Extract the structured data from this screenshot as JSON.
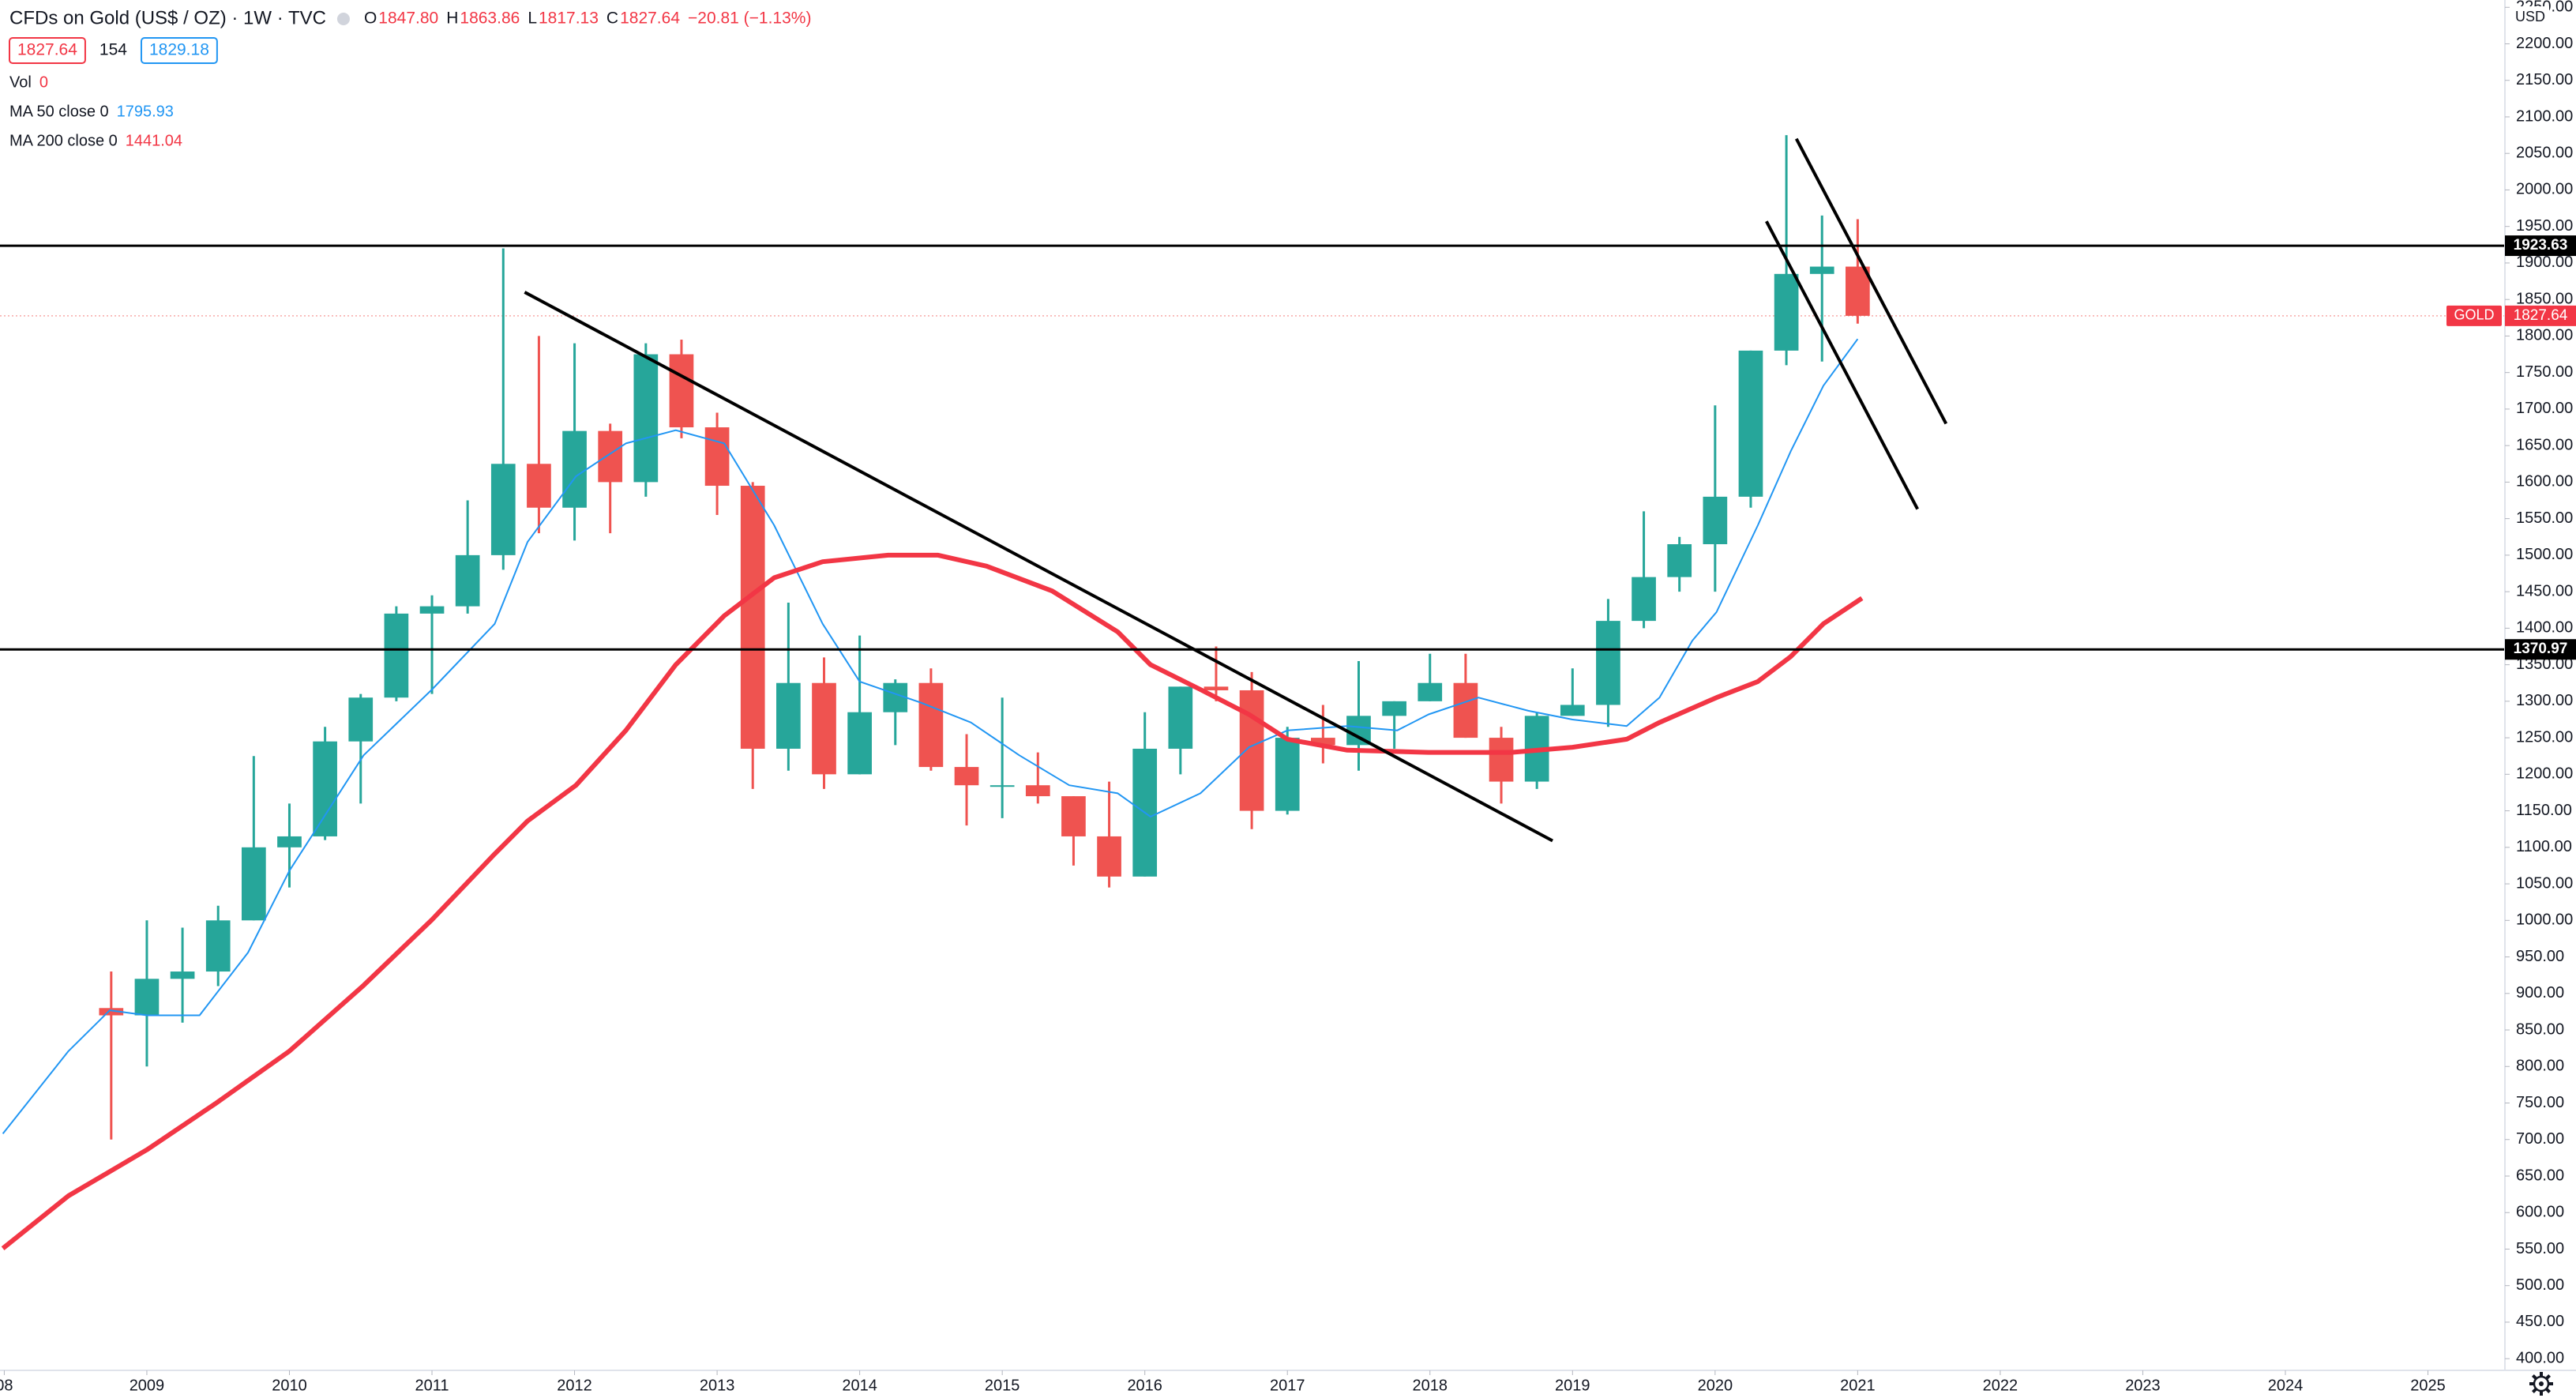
{
  "header": {
    "title": "CFDs on Gold (US$ / OZ) · 1W · TVC",
    "ohlc": [
      [
        "O",
        "1847.80"
      ],
      [
        "H",
        "1863.86"
      ],
      [
        "L",
        "1817.13"
      ],
      [
        "C",
        "1827.64"
      ]
    ],
    "change": "−20.81 (−1.13%)",
    "bid": "1827.64",
    "spread": "154",
    "ask": "1829.18",
    "currency": "USD"
  },
  "volume": {
    "name": "Vol",
    "value": "0"
  },
  "chart_data": {
    "type": "candlestick",
    "up_color": "#26a69a",
    "down_color": "#ef5350",
    "x": [
      2008.75,
      2009.0,
      2009.25,
      2009.5,
      2009.75,
      2010.0,
      2010.25,
      2010.5,
      2010.75,
      2011.0,
      2011.25,
      2011.5,
      2011.75,
      2012.0,
      2012.25,
      2012.5,
      2012.75,
      2013.0,
      2013.25,
      2013.5,
      2013.75,
      2014.0,
      2014.25,
      2014.5,
      2014.75,
      2015.0,
      2015.25,
      2015.5,
      2015.75,
      2016.0,
      2016.25,
      2016.5,
      2016.75,
      2017.0,
      2017.25,
      2017.5,
      2017.75,
      2018.0,
      2018.25,
      2018.5,
      2018.75,
      2019.0,
      2019.25,
      2019.5,
      2019.75,
      2020.0,
      2020.25,
      2020.5,
      2020.75,
      2021.0
    ],
    "open": [
      880,
      870,
      920,
      930,
      1000,
      1100,
      1115,
      1245,
      1305,
      1420,
      1430,
      1500,
      1625,
      1565,
      1670,
      1600,
      1775,
      1675,
      1595,
      1235,
      1325,
      1200,
      1285,
      1325,
      1210,
      1185,
      1185,
      1170,
      1115,
      1060,
      1235,
      1320,
      1315,
      1150,
      1250,
      1240,
      1280,
      1300,
      1325,
      1250,
      1190,
      1280,
      1295,
      1410,
      1470,
      1515,
      1580,
      1780,
      1885,
      1895
    ],
    "high": [
      930,
      1000,
      990,
      1020,
      1225,
      1160,
      1265,
      1310,
      1430,
      1445,
      1575,
      1920,
      1800,
      1790,
      1680,
      1790,
      1795,
      1695,
      1600,
      1435,
      1360,
      1390,
      1330,
      1345,
      1255,
      1305,
      1230,
      1170,
      1190,
      1285,
      1320,
      1375,
      1340,
      1265,
      1295,
      1355,
      1300,
      1365,
      1365,
      1265,
      1285,
      1345,
      1440,
      1560,
      1525,
      1705,
      1780,
      2075,
      1965,
      1960
    ],
    "low": [
      700,
      800,
      860,
      910,
      1000,
      1045,
      1110,
      1160,
      1300,
      1310,
      1420,
      1480,
      1530,
      1520,
      1530,
      1580,
      1660,
      1555,
      1180,
      1205,
      1180,
      1200,
      1240,
      1205,
      1130,
      1140,
      1160,
      1075,
      1045,
      1060,
      1200,
      1300,
      1125,
      1145,
      1215,
      1205,
      1235,
      1300,
      1250,
      1160,
      1180,
      1280,
      1265,
      1400,
      1450,
      1450,
      1565,
      1760,
      1765,
      1817
    ],
    "close": [
      870,
      920,
      930,
      1000,
      1100,
      1115,
      1245,
      1305,
      1420,
      1430,
      1500,
      1625,
      1565,
      1670,
      1600,
      1775,
      1675,
      1595,
      1235,
      1325,
      1200,
      1285,
      1325,
      1210,
      1185,
      1185,
      1170,
      1115,
      1060,
      1235,
      1320,
      1315,
      1150,
      1250,
      1240,
      1280,
      1300,
      1325,
      1250,
      1190,
      1280,
      1295,
      1410,
      1470,
      1515,
      1580,
      1780,
      1885,
      1895,
      1827.64
    ],
    "series": [
      {
        "name": "MA 50 close 0",
        "last_value": "1795.93",
        "color": "#2196f3",
        "x": [
          2007.99,
          2008.45,
          2008.74,
          2009.0,
          2009.37,
          2009.71,
          2010.0,
          2010.52,
          2011.0,
          2011.44,
          2011.67,
          2012.01,
          2012.36,
          2012.71,
          2013.05,
          2013.4,
          2013.74,
          2014.0,
          2014.43,
          2014.78,
          2015.12,
          2015.47,
          2015.81,
          2016.04,
          2016.39,
          2016.73,
          2017.0,
          2017.42,
          2017.77,
          2017.99,
          2018.34,
          2018.69,
          2019.0,
          2019.38,
          2019.61,
          2019.84,
          2020.01,
          2020.3,
          2020.53,
          2020.76,
          2021.0
        ],
        "values": [
          708,
          821,
          877,
          870,
          870,
          956,
          1068,
          1226,
          1316,
          1406,
          1518,
          1608,
          1653,
          1671,
          1653,
          1541,
          1406,
          1327,
          1298,
          1271,
          1226,
          1185,
          1174,
          1142,
          1174,
          1237,
          1260,
          1266,
          1260,
          1282,
          1305,
          1287,
          1275,
          1266,
          1305,
          1383,
          1422,
          1541,
          1642,
          1732,
          1795.93
        ]
      },
      {
        "name": "MA 200 close 0",
        "last_value": "1441.04",
        "color": "#f23645",
        "x": [
          2007.99,
          2008.45,
          2009.0,
          2009.48,
          2010.0,
          2010.52,
          2011.0,
          2011.44,
          2011.67,
          2012.01,
          2012.36,
          2012.71,
          2013.05,
          2013.4,
          2013.74,
          2014.2,
          2014.55,
          2014.89,
          2015.35,
          2015.81,
          2016.04,
          2016.39,
          2016.73,
          2017.0,
          2017.42,
          2017.99,
          2018.57,
          2019.0,
          2019.38,
          2019.61,
          2020.01,
          2020.3,
          2020.53,
          2020.76,
          2021.03
        ],
        "values": [
          551,
          623,
          686,
          749,
          821,
          911,
          1001,
          1091,
          1136,
          1185,
          1260,
          1350,
          1417,
          1469,
          1491,
          1500,
          1500,
          1485,
          1451,
          1395,
          1350,
          1316,
          1282,
          1248,
          1233,
          1230,
          1230,
          1237,
          1248,
          1271,
          1305,
          1327,
          1361,
          1406,
          1441.04
        ]
      }
    ],
    "hlines": [
      1923.63,
      1370.97
    ],
    "trendlines": [
      {
        "x": [
          2011.65,
          2018.86
        ],
        "values": [
          1860,
          1109
        ]
      },
      {
        "x": [
          2020.57,
          2021.62
        ],
        "values": [
          2070,
          1680
        ]
      },
      {
        "x": [
          2020.36,
          2021.42
        ],
        "values": [
          1957,
          1563
        ]
      }
    ],
    "last_price": {
      "name": "GOLD",
      "value": 1827.64
    },
    "xlim": [
      2007.97,
      2025.54
    ],
    "xticks": [
      {
        "value": 2008,
        "label": "08"
      },
      2009,
      2010,
      2011,
      2012,
      2013,
      2014,
      2015,
      2016,
      2017,
      2018,
      2019,
      2020,
      2021,
      2022,
      2023,
      2024,
      2025
    ],
    "ylim": [
      384,
      2260
    ],
    "yticks": [
      {
        "value": 400,
        "label": "400.00"
      },
      {
        "value": 450,
        "label": "450.00"
      },
      {
        "value": 500,
        "label": "500.00"
      },
      {
        "value": 550,
        "label": "550.00"
      },
      {
        "value": 600,
        "label": "600.00"
      },
      {
        "value": 650,
        "label": "650.00"
      },
      {
        "value": 700,
        "label": "700.00"
      },
      {
        "value": 750,
        "label": "750.00"
      },
      {
        "value": 800,
        "label": "800.00"
      },
      {
        "value": 850,
        "label": "850.00"
      },
      {
        "value": 900,
        "label": "900.00"
      },
      {
        "value": 950,
        "label": "950.00"
      },
      {
        "value": 1000,
        "label": "1000.00"
      },
      {
        "value": 1050,
        "label": "1050.00"
      },
      {
        "value": 1100,
        "label": "1100.00"
      },
      {
        "value": 1150,
        "label": "1150.00"
      },
      {
        "value": 1200,
        "label": "1200.00"
      },
      {
        "value": 1250,
        "label": "1250.00"
      },
      {
        "value": 1300,
        "label": "1300.00"
      },
      {
        "value": 1350,
        "label": "1350.00"
      },
      {
        "value": 1400,
        "label": "1400.00"
      },
      {
        "value": 1450,
        "label": "1450.00"
      },
      {
        "value": 1500,
        "label": "1500.00"
      },
      {
        "value": 1550,
        "label": "1550.00"
      },
      {
        "value": 1600,
        "label": "1600.00"
      },
      {
        "value": 1650,
        "label": "1650.00"
      },
      {
        "value": 1700,
        "label": "1700.00"
      },
      {
        "value": 1750,
        "label": "1750.00"
      },
      {
        "value": 1800,
        "label": "1800.00"
      },
      {
        "value": 1850,
        "label": "1850.00"
      },
      {
        "value": 1900,
        "label": "1900.00"
      },
      {
        "value": 1950,
        "label": "1950.00"
      },
      {
        "value": 2000,
        "label": "2000.00"
      },
      {
        "value": 2050,
        "label": "2050.00"
      },
      {
        "value": 2100,
        "label": "2100.00"
      },
      {
        "value": 2150,
        "label": "2150.00"
      },
      {
        "value": 2200,
        "label": "2200.00"
      },
      {
        "value": 2250,
        "label": "2250.00"
      }
    ],
    "grid": false
  }
}
